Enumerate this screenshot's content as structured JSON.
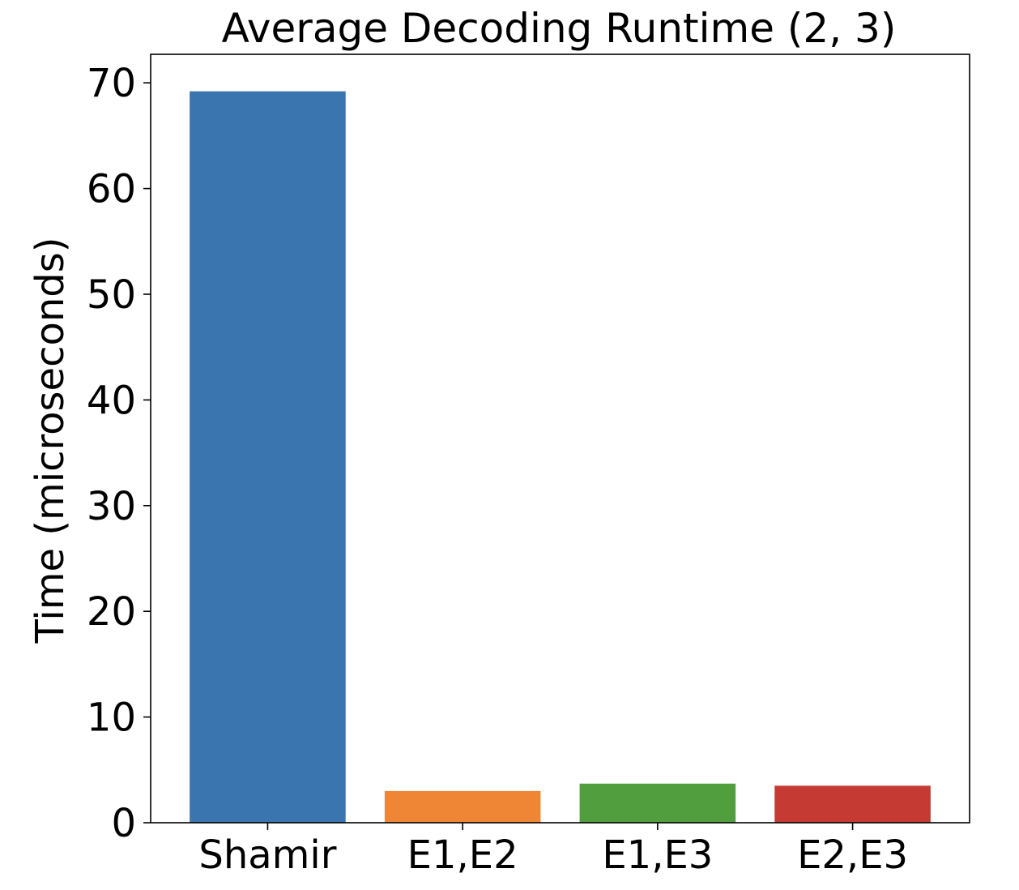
{
  "chart_data": {
    "type": "bar",
    "title": "Average Decoding Runtime (2, 3)",
    "xlabel": "",
    "ylabel": "Time (microseconds)",
    "categories": [
      "Shamir",
      "E1,E2",
      "E1,E3",
      "E2,E3"
    ],
    "values": [
      69.2,
      3.0,
      3.7,
      3.5
    ],
    "colors": [
      "#3b75af",
      "#ef8636",
      "#519e3e",
      "#c53a32"
    ],
    "ylim": [
      0,
      72.7
    ],
    "yticks": [
      0,
      10,
      20,
      30,
      40,
      50,
      60,
      70
    ],
    "grid": false,
    "legend": "none"
  }
}
